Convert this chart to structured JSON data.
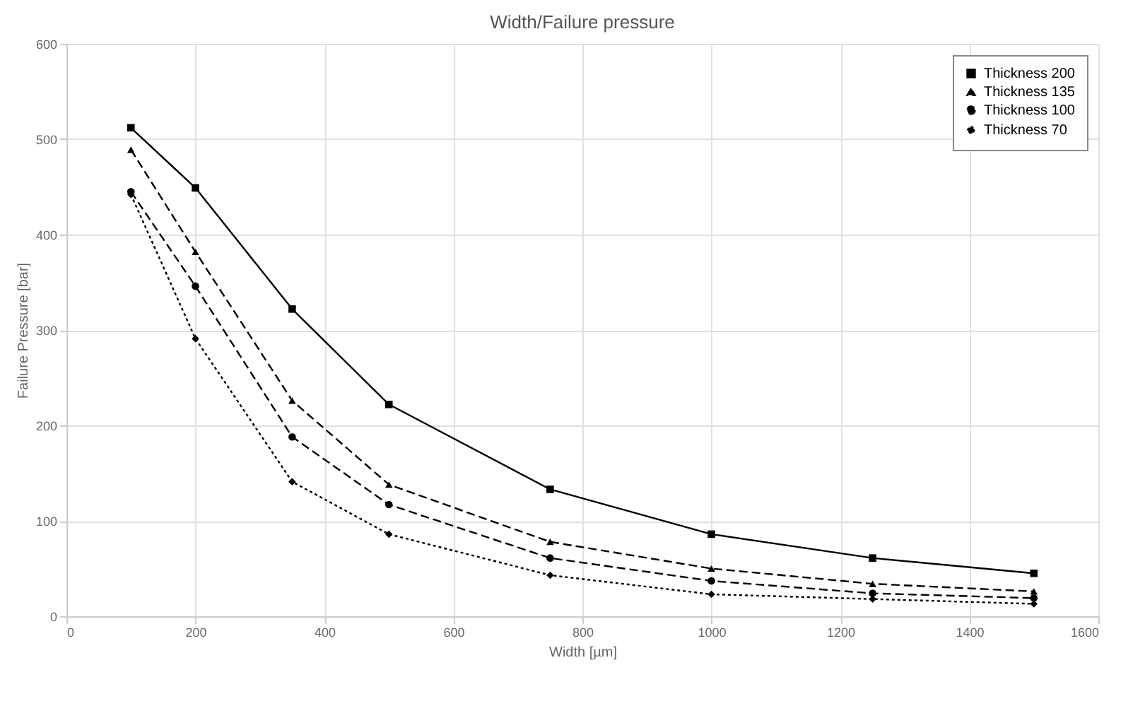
{
  "chart_data": {
    "type": "line",
    "title": "Width/Failure pressure",
    "xlabel": "Width [µm]",
    "ylabel": "Failure Pressure [bar]",
    "x": [
      100,
      200,
      350,
      500,
      750,
      1000,
      1250,
      1500
    ],
    "series": [
      {
        "name": "Thickness 200",
        "color": "#000000",
        "marker": "square",
        "line_style": "solid",
        "values": [
          512,
          449,
          322,
          222,
          133,
          86,
          61,
          45
        ]
      },
      {
        "name": "Thickness 135",
        "color": "#000000",
        "marker": "triangle",
        "line_style": "dashed",
        "values": [
          489,
          382,
          226,
          138,
          78,
          50,
          34,
          26
        ]
      },
      {
        "name": "Thickness 100",
        "color": "#000000",
        "marker": "circle",
        "line_style": "dashed",
        "values": [
          445,
          346,
          188,
          117,
          61,
          37,
          24,
          19
        ]
      },
      {
        "name": "Thickness 70",
        "color": "#000000",
        "marker": "diamond",
        "line_style": "dotted",
        "values": [
          442,
          291,
          141,
          86,
          43,
          23,
          18,
          13
        ]
      }
    ],
    "xlim": [
      0,
      1600
    ],
    "xticks": [
      0,
      200,
      400,
      600,
      800,
      1000,
      1200,
      1400,
      1600
    ],
    "ylim": [
      0,
      600
    ],
    "yticks": [
      0,
      100,
      200,
      300,
      400,
      500,
      600
    ],
    "grid": true,
    "legend": "top right"
  }
}
